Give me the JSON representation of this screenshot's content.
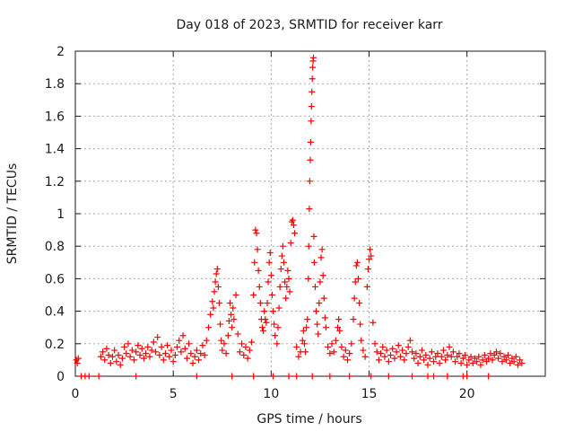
{
  "chart_data": {
    "type": "scatter",
    "title": "Day 018 of 2023, SRMTID for receiver karr",
    "xlabel": "GPS time / hours",
    "ylabel": "SRMTID / TECUs",
    "xlim": [
      0,
      24
    ],
    "ylim": [
      0,
      2
    ],
    "xticks": [
      0,
      5,
      10,
      15,
      20
    ],
    "xtick_labels": [
      "0",
      "5",
      "10",
      "15",
      "20"
    ],
    "yticks": [
      0,
      0.2,
      0.4,
      0.6,
      0.8,
      1,
      1.2,
      1.4,
      1.6,
      1.8,
      2
    ],
    "ytick_labels": [
      "0",
      "0.2",
      "0.4",
      "0.6",
      "0.8",
      "1",
      "1.2",
      "1.4",
      "1.6",
      "1.8",
      "2"
    ],
    "grid": true,
    "marker": "plus",
    "marker_color": "#ff0000",
    "series": [
      {
        "name": "karr",
        "points": [
          [
            0.05,
            0.1
          ],
          [
            0.1,
            0.08
          ],
          [
            0.15,
            0.11
          ],
          [
            1.3,
            0.12
          ],
          [
            1.4,
            0.15
          ],
          [
            1.5,
            0.1
          ],
          [
            1.6,
            0.17
          ],
          [
            1.7,
            0.13
          ],
          [
            1.8,
            0.08
          ],
          [
            1.9,
            0.12
          ],
          [
            2.0,
            0.16
          ],
          [
            2.1,
            0.09
          ],
          [
            2.2,
            0.13
          ],
          [
            2.3,
            0.07
          ],
          [
            2.4,
            0.11
          ],
          [
            2.5,
            0.18
          ],
          [
            2.6,
            0.14
          ],
          [
            2.7,
            0.2
          ],
          [
            2.8,
            0.12
          ],
          [
            2.9,
            0.16
          ],
          [
            3.0,
            0.1
          ],
          [
            3.1,
            0.15
          ],
          [
            3.2,
            0.19
          ],
          [
            3.3,
            0.13
          ],
          [
            3.4,
            0.17
          ],
          [
            3.5,
            0.11
          ],
          [
            3.6,
            0.14
          ],
          [
            3.7,
            0.18
          ],
          [
            3.8,
            0.12
          ],
          [
            3.9,
            0.16
          ],
          [
            4.0,
            0.21
          ],
          [
            4.1,
            0.15
          ],
          [
            4.2,
            0.24
          ],
          [
            4.3,
            0.13
          ],
          [
            4.4,
            0.18
          ],
          [
            4.5,
            0.1
          ],
          [
            4.6,
            0.14
          ],
          [
            4.7,
            0.19
          ],
          [
            4.8,
            0.12
          ],
          [
            4.9,
            0.16
          ],
          [
            5.0,
            0.09
          ],
          [
            5.1,
            0.13
          ],
          [
            5.2,
            0.18
          ],
          [
            5.3,
            0.22
          ],
          [
            5.4,
            0.15
          ],
          [
            5.5,
            0.25
          ],
          [
            5.6,
            0.17
          ],
          [
            5.7,
            0.11
          ],
          [
            5.8,
            0.2
          ],
          [
            5.9,
            0.14
          ],
          [
            6.0,
            0.08
          ],
          [
            6.1,
            0.12
          ],
          [
            6.2,
            0.16
          ],
          [
            6.3,
            0.1
          ],
          [
            6.4,
            0.14
          ],
          [
            6.5,
            0.19
          ],
          [
            6.6,
            0.13
          ],
          [
            6.7,
            0.22
          ],
          [
            6.8,
            0.3
          ],
          [
            6.9,
            0.38
          ],
          [
            7.0,
            0.46
          ],
          [
            7.05,
            0.42
          ],
          [
            7.1,
            0.52
          ],
          [
            7.15,
            0.58
          ],
          [
            7.2,
            0.63
          ],
          [
            7.25,
            0.66
          ],
          [
            7.3,
            0.55
          ],
          [
            7.35,
            0.45
          ],
          [
            7.4,
            0.32
          ],
          [
            7.45,
            0.22
          ],
          [
            7.5,
            0.16
          ],
          [
            7.6,
            0.2
          ],
          [
            7.7,
            0.14
          ],
          [
            7.8,
            0.25
          ],
          [
            7.85,
            0.34
          ],
          [
            7.9,
            0.45
          ],
          [
            7.95,
            0.38
          ],
          [
            8.0,
            0.3
          ],
          [
            8.05,
            0.42
          ],
          [
            8.1,
            0.35
          ],
          [
            8.2,
            0.5
          ],
          [
            8.3,
            0.26
          ],
          [
            8.4,
            0.15
          ],
          [
            8.5,
            0.2
          ],
          [
            8.6,
            0.13
          ],
          [
            8.7,
            0.18
          ],
          [
            8.8,
            0.11
          ],
          [
            8.9,
            0.16
          ],
          [
            9.0,
            0.21
          ],
          [
            9.1,
            0.5
          ],
          [
            9.15,
            0.7
          ],
          [
            9.2,
            0.9
          ],
          [
            9.25,
            0.88
          ],
          [
            9.3,
            0.78
          ],
          [
            9.35,
            0.65
          ],
          [
            9.4,
            0.55
          ],
          [
            9.45,
            0.45
          ],
          [
            9.5,
            0.35
          ],
          [
            9.55,
            0.3
          ],
          [
            9.6,
            0.28
          ],
          [
            9.65,
            0.4
          ],
          [
            9.7,
            0.35
          ],
          [
            9.75,
            0.33
          ],
          [
            9.8,
            0.45
          ],
          [
            9.85,
            0.58
          ],
          [
            9.9,
            0.7
          ],
          [
            9.95,
            0.76
          ],
          [
            10.0,
            0.62
          ],
          [
            10.05,
            0.5
          ],
          [
            10.1,
            0.4
          ],
          [
            10.15,
            0.32
          ],
          [
            10.2,
            0.25
          ],
          [
            10.3,
            0.2
          ],
          [
            10.35,
            0.3
          ],
          [
            10.4,
            0.42
          ],
          [
            10.45,
            0.55
          ],
          [
            10.5,
            0.66
          ],
          [
            10.55,
            0.74
          ],
          [
            10.6,
            0.8
          ],
          [
            10.65,
            0.7
          ],
          [
            10.7,
            0.58
          ],
          [
            10.75,
            0.48
          ],
          [
            10.8,
            0.55
          ],
          [
            10.85,
            0.65
          ],
          [
            10.9,
            0.6
          ],
          [
            10.95,
            0.52
          ],
          [
            11.0,
            0.82
          ],
          [
            11.05,
            0.95
          ],
          [
            11.1,
            0.96
          ],
          [
            11.15,
            0.93
          ],
          [
            11.2,
            0.88
          ],
          [
            11.3,
            0.18
          ],
          [
            11.4,
            0.12
          ],
          [
            11.5,
            0.15
          ],
          [
            11.6,
            0.22
          ],
          [
            11.65,
            0.28
          ],
          [
            11.7,
            0.2
          ],
          [
            11.75,
            0.15
          ],
          [
            11.8,
            0.3
          ],
          [
            11.85,
            0.35
          ],
          [
            11.9,
            0.6
          ],
          [
            11.92,
            0.8
          ],
          [
            11.95,
            1.03
          ],
          [
            11.97,
            1.2
          ],
          [
            12.0,
            1.33
          ],
          [
            12.02,
            1.44
          ],
          [
            12.04,
            1.57
          ],
          [
            12.06,
            1.66
          ],
          [
            12.08,
            1.75
          ],
          [
            12.1,
            1.83
          ],
          [
            12.12,
            1.9
          ],
          [
            12.14,
            1.94
          ],
          [
            12.16,
            1.96
          ],
          [
            12.18,
            0.86
          ],
          [
            12.2,
            0.7
          ],
          [
            12.25,
            0.55
          ],
          [
            12.3,
            0.4
          ],
          [
            12.35,
            0.32
          ],
          [
            12.4,
            0.26
          ],
          [
            12.45,
            0.45
          ],
          [
            12.5,
            0.58
          ],
          [
            12.55,
            0.73
          ],
          [
            12.6,
            0.78
          ],
          [
            12.65,
            0.62
          ],
          [
            12.7,
            0.48
          ],
          [
            12.75,
            0.36
          ],
          [
            12.8,
            0.3
          ],
          [
            12.9,
            0.18
          ],
          [
            13.0,
            0.14
          ],
          [
            13.1,
            0.2
          ],
          [
            13.2,
            0.15
          ],
          [
            13.3,
            0.22
          ],
          [
            13.4,
            0.3
          ],
          [
            13.45,
            0.35
          ],
          [
            13.5,
            0.28
          ],
          [
            13.6,
            0.18
          ],
          [
            13.7,
            0.12
          ],
          [
            13.8,
            0.16
          ],
          [
            13.9,
            0.1
          ],
          [
            14.0,
            0.14
          ],
          [
            14.1,
            0.2
          ],
          [
            14.2,
            0.35
          ],
          [
            14.25,
            0.48
          ],
          [
            14.3,
            0.58
          ],
          [
            14.35,
            0.68
          ],
          [
            14.4,
            0.7
          ],
          [
            14.45,
            0.6
          ],
          [
            14.5,
            0.45
          ],
          [
            14.55,
            0.32
          ],
          [
            14.6,
            0.22
          ],
          [
            14.7,
            0.16
          ],
          [
            14.8,
            0.12
          ],
          [
            14.9,
            0.55
          ],
          [
            14.95,
            0.66
          ],
          [
            15.0,
            0.72
          ],
          [
            15.05,
            0.78
          ],
          [
            15.1,
            0.74
          ],
          [
            15.2,
            0.33
          ],
          [
            15.3,
            0.2
          ],
          [
            15.4,
            0.15
          ],
          [
            15.5,
            0.1
          ],
          [
            15.6,
            0.14
          ],
          [
            15.7,
            0.18
          ],
          [
            15.8,
            0.12
          ],
          [
            15.9,
            0.16
          ],
          [
            16.0,
            0.09
          ],
          [
            16.1,
            0.13
          ],
          [
            16.2,
            0.17
          ],
          [
            16.3,
            0.11
          ],
          [
            16.4,
            0.15
          ],
          [
            16.5,
            0.19
          ],
          [
            16.6,
            0.12
          ],
          [
            16.7,
            0.16
          ],
          [
            16.8,
            0.1
          ],
          [
            16.9,
            0.14
          ],
          [
            17.0,
            0.18
          ],
          [
            17.1,
            0.22
          ],
          [
            17.2,
            0.15
          ],
          [
            17.3,
            0.11
          ],
          [
            17.4,
            0.14
          ],
          [
            17.5,
            0.08
          ],
          [
            17.6,
            0.12
          ],
          [
            17.7,
            0.16
          ],
          [
            17.8,
            0.1
          ],
          [
            17.9,
            0.13
          ],
          [
            18.0,
            0.07
          ],
          [
            18.1,
            0.11
          ],
          [
            18.2,
            0.15
          ],
          [
            18.3,
            0.09
          ],
          [
            18.4,
            0.12
          ],
          [
            18.5,
            0.14
          ],
          [
            18.6,
            0.08
          ],
          [
            18.7,
            0.12
          ],
          [
            18.8,
            0.16
          ],
          [
            18.9,
            0.1
          ],
          [
            19.0,
            0.13
          ],
          [
            19.1,
            0.18
          ],
          [
            19.2,
            0.12
          ],
          [
            19.3,
            0.15
          ],
          [
            19.4,
            0.09
          ],
          [
            19.5,
            0.12
          ],
          [
            19.6,
            0.14
          ],
          [
            19.7,
            0.08
          ],
          [
            19.8,
            0.11
          ],
          [
            19.9,
            0.13
          ],
          [
            20.0,
            0.07
          ],
          [
            20.1,
            0.1
          ],
          [
            20.2,
            0.12
          ],
          [
            20.3,
            0.08
          ],
          [
            20.4,
            0.11
          ],
          [
            20.5,
            0.09
          ],
          [
            20.6,
            0.12
          ],
          [
            20.7,
            0.07
          ],
          [
            20.8,
            0.1
          ],
          [
            20.9,
            0.13
          ],
          [
            21.0,
            0.09
          ],
          [
            21.1,
            0.11
          ],
          [
            21.2,
            0.14
          ],
          [
            21.3,
            0.1
          ],
          [
            21.4,
            0.13
          ],
          [
            21.5,
            0.15
          ],
          [
            21.6,
            0.11
          ],
          [
            21.7,
            0.14
          ],
          [
            21.8,
            0.09
          ],
          [
            21.9,
            0.12
          ],
          [
            22.0,
            0.1
          ],
          [
            22.1,
            0.13
          ],
          [
            22.2,
            0.08
          ],
          [
            22.3,
            0.11
          ],
          [
            22.4,
            0.09
          ],
          [
            22.5,
            0.12
          ],
          [
            22.6,
            0.07
          ],
          [
            22.7,
            0.1
          ],
          [
            22.8,
            0.08
          ],
          [
            0.3,
            0.0
          ],
          [
            0.5,
            0.0
          ],
          [
            0.7,
            0.0
          ],
          [
            1.2,
            0.0
          ],
          [
            3.1,
            0.0
          ],
          [
            6.2,
            0.0
          ],
          [
            8.0,
            0.0
          ],
          [
            9.1,
            0.0
          ],
          [
            10.1,
            0.0
          ],
          [
            10.9,
            0.0
          ],
          [
            11.3,
            0.0
          ],
          [
            12.1,
            0.0
          ],
          [
            13.0,
            0.0
          ],
          [
            14.0,
            0.0
          ],
          [
            15.1,
            0.0
          ],
          [
            16.0,
            0.0
          ],
          [
            17.2,
            0.0
          ],
          [
            18.0,
            0.0
          ],
          [
            18.3,
            0.0
          ],
          [
            19.0,
            0.0
          ],
          [
            19.8,
            0.0
          ],
          [
            20.0,
            0.0
          ],
          [
            21.1,
            0.0
          ]
        ]
      }
    ]
  }
}
